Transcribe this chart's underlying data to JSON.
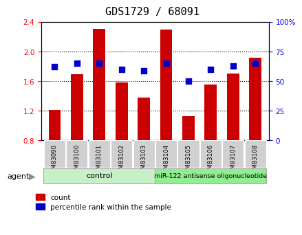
{
  "title": "GDS1729 / 68091",
  "samples": [
    "GSM83090",
    "GSM83100",
    "GSM83101",
    "GSM83102",
    "GSM83103",
    "GSM83104",
    "GSM83105",
    "GSM83106",
    "GSM83107",
    "GSM83108"
  ],
  "count_values": [
    1.21,
    1.69,
    2.31,
    1.58,
    1.38,
    2.3,
    1.13,
    1.55,
    1.7,
    1.92
  ],
  "percentile_values": [
    62,
    65,
    65,
    60,
    59,
    65,
    50,
    60,
    63,
    65
  ],
  "bar_bottom": 0.8,
  "ylim_left": [
    0.8,
    2.4
  ],
  "ylim_right": [
    0,
    100
  ],
  "yticks_left": [
    0.8,
    1.2,
    1.6,
    2.0,
    2.4
  ],
  "yticks_right": [
    0,
    25,
    50,
    75,
    100
  ],
  "bar_color": "#cc0000",
  "dot_color": "#0000cc",
  "bar_width": 0.55,
  "control_samples": 5,
  "control_label": "control",
  "treatment_label": "miR-122 antisense oligonucleotide",
  "control_color": "#c8f0c8",
  "treatment_color": "#90ee90",
  "agent_label": "agent",
  "legend_count_label": "count",
  "legend_pct_label": "percentile rank within the sample",
  "title_fontsize": 11,
  "tick_fontsize": 7.5,
  "grid_ticks": [
    1.2,
    1.6,
    2.0
  ]
}
